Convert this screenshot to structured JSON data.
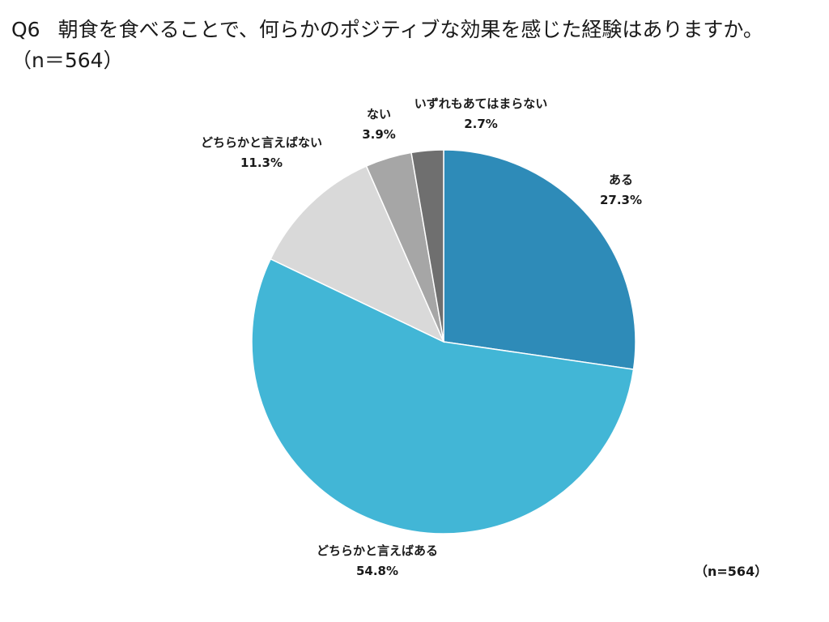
{
  "title": {
    "question_no": "Q6",
    "text": "朝食を食べることで、何らかのポジティブな効果を感じた経験はありますか。",
    "sample": "（n＝564）"
  },
  "sample_note": "（n=564）",
  "chart_data": {
    "type": "pie",
    "start": "12 o'clock",
    "direction": "clockwise",
    "slices": [
      {
        "label": "ある",
        "value": 27.3,
        "display": "27.3%",
        "color": "#2e8bb8"
      },
      {
        "label": "どちらかと言えばある",
        "value": 54.8,
        "display": "54.8%",
        "color": "#42b6d6"
      },
      {
        "label": "どちらかと言えばない",
        "value": 11.3,
        "display": "11.3%",
        "color": "#d9d9d9"
      },
      {
        "label": "ない",
        "value": 3.9,
        "display": "3.9%",
        "color": "#a6a6a6"
      },
      {
        "label": "いずれもあてはまらない",
        "value": 2.7,
        "display": "2.7%",
        "color": "#6f6f6f"
      }
    ]
  }
}
